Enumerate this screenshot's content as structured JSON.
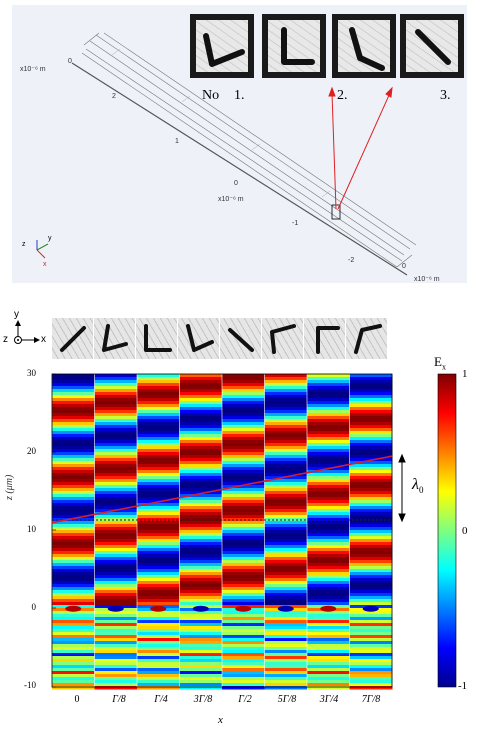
{
  "top_panel": {
    "axis_unit_left": "x10⁻⁶ m",
    "axis_unit_mid": "x10⁻⁶ m",
    "axis_unit_right": "x10⁻⁶ m",
    "axis_numbers": [
      "0",
      "2",
      "1",
      "0",
      "-1",
      "-2",
      "0"
    ],
    "triad": {
      "z": "z",
      "y": "y",
      "x": "x"
    },
    "labels": {
      "no": "No",
      "n1": "1.",
      "n2": "2.",
      "n3": "3."
    }
  },
  "bottom_panel": {
    "coord_axes": {
      "y": "y",
      "z": "z",
      "x": "x"
    },
    "colorbar": {
      "title": "E",
      "subscript": "x",
      "max_label": "1",
      "mid_label": "0",
      "min_label": "-1"
    },
    "lambda_label": "λ",
    "lambda_sub": "0"
  },
  "chart_data": {
    "type": "heatmap",
    "title": "",
    "xlabel": "x",
    "ylabel": "z (μm)",
    "x_ticks": [
      "0",
      "Γ/8",
      "Γ/4",
      "3Γ/8",
      "Γ/2",
      "5Γ/8",
      "3Γ/4",
      "7Γ/8"
    ],
    "y_ticks": [
      "30",
      "20",
      "10",
      "0",
      "-10"
    ],
    "ylim": [
      -10,
      30
    ],
    "colorbar_range": [
      -1,
      1
    ],
    "colormap": "jet",
    "red_line": {
      "z_start": 11,
      "z_end": 19.5
    },
    "dotted_line_z": 11,
    "wavelength_marker": "λ0"
  },
  "colors": {
    "panel_bg": "#eef1f8",
    "line_red": "#d4202a",
    "arrow_red": "#e02020"
  }
}
